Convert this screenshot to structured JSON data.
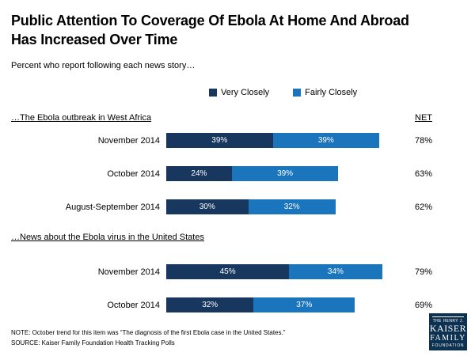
{
  "title_lines": [
    "Public Attention To Coverage Of Ebola At Home And Abroad",
    "Has Increased Over Time"
  ],
  "subtitle": "Percent who report following each news story…",
  "legend": [
    {
      "label": "Very Closely",
      "color": "#17375e"
    },
    {
      "label": "Fairly Closely",
      "color": "#1b75bc"
    }
  ],
  "net_label": "NET",
  "chart_data": {
    "type": "bar",
    "orientation": "horizontal",
    "stacked": true,
    "unit": "%",
    "x_max_percent": 100,
    "series_names": [
      "Very Closely",
      "Fairly Closely"
    ],
    "colors": {
      "very_closely": "#17375e",
      "fairly_closely": "#1b75bc"
    },
    "sections": [
      {
        "header": "…The Ebola outbreak in West Africa",
        "rows": [
          {
            "label": "November 2014",
            "very_closely": 39,
            "fairly_closely": 39,
            "net": 78
          },
          {
            "label": "October 2014",
            "very_closely": 24,
            "fairly_closely": 39,
            "net": 63
          },
          {
            "label": "August-September 2014",
            "very_closely": 30,
            "fairly_closely": 32,
            "net": 62
          }
        ]
      },
      {
        "header": "…News about the Ebola virus in the United States",
        "rows": [
          {
            "label": "November 2014",
            "very_closely": 45,
            "fairly_closely": 34,
            "net": 79
          },
          {
            "label": "October 2014",
            "very_closely": 32,
            "fairly_closely": 37,
            "net": 69
          }
        ]
      }
    ]
  },
  "footer": {
    "note": "NOTE: October trend for this item was “The diagnosis of the first Ebola case in the United States.”",
    "source": "SOURCE: Kaiser Family Foundation Health Tracking Polls"
  },
  "logo": {
    "line1": "THE HENRY J.",
    "line2": "KAISER",
    "line3": "FAMILY",
    "line4": "FOUNDATION"
  }
}
